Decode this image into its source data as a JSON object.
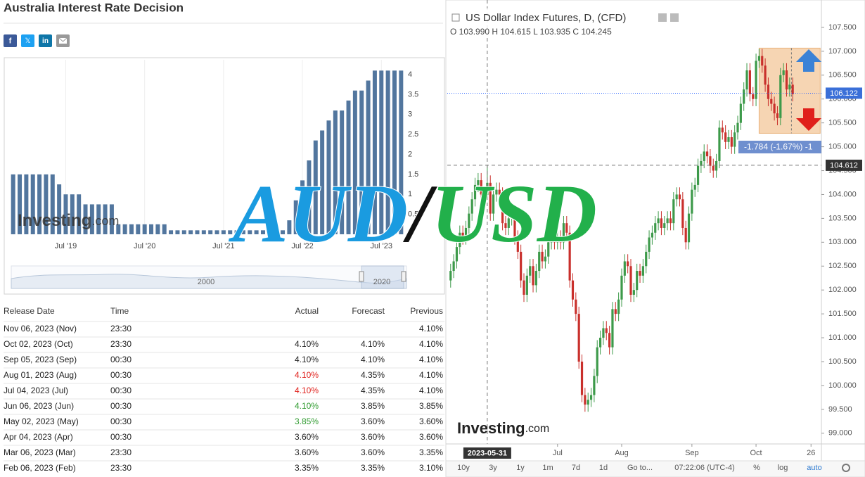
{
  "header": {
    "title": "Australia Interest Rate Decision",
    "social": [
      "f",
      "𝕏",
      "in"
    ]
  },
  "brand": {
    "name": "Investing",
    "suffix": ".com"
  },
  "table": {
    "columns": [
      "Release Date",
      "Time",
      "Actual",
      "Forecast",
      "Previous"
    ],
    "rows": [
      [
        "Nov 06, 2023 (Nov)",
        "23:30",
        null,
        null,
        "4.10%"
      ],
      [
        "Oct 02, 2023 (Oct)",
        "23:30",
        "4.10%",
        "4.10%",
        "4.10%"
      ],
      [
        "Sep 05, 2023 (Sep)",
        "00:30",
        "4.10%",
        "4.10%",
        "4.10%"
      ],
      [
        "Aug 01, 2023 (Aug)",
        "00:30",
        "4.10%",
        "4.35%",
        "4.10%"
      ],
      [
        "Jul 04, 2023 (Jul)",
        "00:30",
        "4.10%",
        "4.35%",
        "4.10%"
      ],
      [
        "Jun 06, 2023 (Jun)",
        "00:30",
        "4.10%",
        "3.85%",
        "3.85%"
      ],
      [
        "May 02, 2023 (May)",
        "00:30",
        "3.85%",
        "3.60%",
        "3.60%"
      ],
      [
        "Apr 04, 2023 (Apr)",
        "00:30",
        "3.60%",
        "3.60%",
        "3.60%"
      ],
      [
        "Mar 06, 2023 (Mar)",
        "23:30",
        "3.60%",
        "3.60%",
        "3.35%"
      ],
      [
        "Feb 06, 2023 (Feb)",
        "23:30",
        "3.35%",
        "3.35%",
        "3.10%"
      ]
    ],
    "actual_colors": [
      "#222222",
      "#222222",
      "#222222",
      "#e0201b",
      "#e0201b",
      "#2e9a2e",
      "#2e9a2e",
      "#222222",
      "#222222",
      "#222222"
    ]
  },
  "chart_data": [
    {
      "type": "bar",
      "color": "#52769e",
      "categories": [
        null,
        null,
        null,
        null,
        null,
        null,
        null,
        null,
        "Jul '19",
        null,
        null,
        null,
        null,
        null,
        null,
        null,
        null,
        null,
        null,
        null,
        "Jul '20",
        null,
        null,
        null,
        null,
        null,
        null,
        null,
        null,
        null,
        null,
        null,
        "Jul '21",
        null,
        null,
        null,
        null,
        null,
        null,
        null,
        null,
        null,
        null,
        null,
        "Jul '22",
        null,
        null,
        null,
        null,
        null,
        null,
        null,
        null,
        null,
        null,
        null,
        "Jul '23",
        null,
        null,
        null
      ],
      "values": [
        1.5,
        1.5,
        1.5,
        1.5,
        1.5,
        1.5,
        1.5,
        1.25,
        1.0,
        1.0,
        1.0,
        0.75,
        0.75,
        0.75,
        0.75,
        0.75,
        0.25,
        0.25,
        0.25,
        0.25,
        0.25,
        0.25,
        0.25,
        0.25,
        0.1,
        0.1,
        0.1,
        0.1,
        0.1,
        0.1,
        0.1,
        0.1,
        0.1,
        0.1,
        0.1,
        0.1,
        0.1,
        0.1,
        0.1,
        0.1,
        0.1,
        0.1,
        0.35,
        0.85,
        1.35,
        1.85,
        2.35,
        2.6,
        2.85,
        3.1,
        3.1,
        3.35,
        3.6,
        3.6,
        3.85,
        4.1,
        4.1,
        4.1,
        4.1,
        4.1
      ],
      "ylim": [
        0,
        4.37
      ],
      "yticks": [
        0,
        0.5,
        1,
        1.5,
        2,
        2.5,
        3,
        3.5,
        4
      ],
      "navigator_labels": [
        "2000",
        "2020"
      ]
    },
    {
      "type": "candlestick",
      "title": "US Dollar Index Futures, D, (CFD)",
      "ohlc_text": "O 103.990  H 104.615  L 103.935  C 104.245",
      "up_color": "#3d9a4a",
      "down_color": "#c9302c",
      "open": [
        102.2,
        102.4,
        102.6,
        102.9,
        103.2,
        103.1,
        103.3,
        103.6,
        103.9,
        104.2,
        104.3,
        104.0,
        103.99,
        104.245,
        103.6,
        104.0,
        104.1,
        104.0,
        103.4,
        103.3,
        103.5,
        103.6,
        103.1,
        102.8,
        102.2,
        101.9,
        102.3,
        102.5,
        102.1,
        102.4,
        102.8,
        102.6,
        102.7,
        103.0,
        103.3,
        103.0,
        103.1,
        103.0,
        103.4,
        103.2,
        102.2,
        101.8,
        101.5,
        100.5,
        99.8,
        99.6,
        99.7,
        99.8,
        100.2,
        100.8,
        101.0,
        101.2,
        101.1,
        100.8,
        101.6,
        101.5,
        101.8,
        102.3,
        102.6,
        102.5,
        101.9,
        102.0,
        102.4,
        102.3,
        102.5,
        102.8,
        103.1,
        103.2,
        103.4,
        103.5,
        103.3,
        103.4,
        103.5,
        103.4,
        103.9,
        104.0,
        103.9,
        103.3,
        103.0,
        103.6,
        104.1,
        104.2,
        104.6,
        104.7,
        104.9,
        104.8,
        104.6,
        104.5,
        104.7,
        105.4,
        105.3,
        105.1,
        105.2,
        105.0,
        105.3,
        105.5,
        105.9,
        106.2,
        106.6,
        106.1,
        106.0,
        106.8,
        106.9,
        106.7,
        106.3,
        106.0,
        105.9,
        105.7,
        105.6,
        106.5,
        106.6,
        106.2,
        106.3
      ],
      "high": [
        102.55,
        102.75,
        103.05,
        103.35,
        103.35,
        103.45,
        103.75,
        104.05,
        104.35,
        104.45,
        104.45,
        104.15,
        104.615,
        104.4,
        104.15,
        104.25,
        104.25,
        104.15,
        103.55,
        103.65,
        103.75,
        103.75,
        103.25,
        102.95,
        102.35,
        102.45,
        102.65,
        102.65,
        102.55,
        102.95,
        102.95,
        102.85,
        103.15,
        103.45,
        103.45,
        103.25,
        103.25,
        103.55,
        103.55,
        103.35,
        102.35,
        101.95,
        101.65,
        100.65,
        99.95,
        99.85,
        99.95,
        100.35,
        100.95,
        101.15,
        101.35,
        101.35,
        101.25,
        101.75,
        101.75,
        101.95,
        102.45,
        102.75,
        102.75,
        102.65,
        102.15,
        102.55,
        102.55,
        102.65,
        102.95,
        103.25,
        103.35,
        103.55,
        103.65,
        103.65,
        103.55,
        103.65,
        103.65,
        104.05,
        104.15,
        104.15,
        104.05,
        103.45,
        103.75,
        104.25,
        104.35,
        104.75,
        104.85,
        105.05,
        105.05,
        104.95,
        104.75,
        104.85,
        105.55,
        105.55,
        105.45,
        105.35,
        105.35,
        105.45,
        105.65,
        106.05,
        106.35,
        106.75,
        106.75,
        106.25,
        106.95,
        107.05,
        107.05,
        106.85,
        106.45,
        106.15,
        106.05,
        105.85,
        106.65,
        106.75,
        106.75,
        106.45,
        106.45
      ],
      "low": [
        102.05,
        102.25,
        102.45,
        102.75,
        102.95,
        102.95,
        103.15,
        103.45,
        103.75,
        104.05,
        103.85,
        103.84,
        103.935,
        103.45,
        103.45,
        103.85,
        103.85,
        103.25,
        103.15,
        103.15,
        103.35,
        102.95,
        102.65,
        102.05,
        101.75,
        101.75,
        102.15,
        101.95,
        101.95,
        102.25,
        102.45,
        102.45,
        102.55,
        102.85,
        102.85,
        102.85,
        102.85,
        102.85,
        103.05,
        102.05,
        101.65,
        101.35,
        100.35,
        99.65,
        99.45,
        99.45,
        99.55,
        99.65,
        100.05,
        100.65,
        100.85,
        100.95,
        100.65,
        100.65,
        101.35,
        101.35,
        101.65,
        102.15,
        102.35,
        101.75,
        101.75,
        101.85,
        102.15,
        102.15,
        102.35,
        102.65,
        102.95,
        103.05,
        103.25,
        103.15,
        103.15,
        103.25,
        103.25,
        103.25,
        103.75,
        103.75,
        103.15,
        102.85,
        102.85,
        103.45,
        103.95,
        104.05,
        104.45,
        104.55,
        104.65,
        104.45,
        104.35,
        104.35,
        104.55,
        105.15,
        104.95,
        104.95,
        104.85,
        104.85,
        105.15,
        105.35,
        105.75,
        106.05,
        105.95,
        105.85,
        105.85,
        106.65,
        106.55,
        106.15,
        105.85,
        105.75,
        105.55,
        105.45,
        105.45,
        106.35,
        106.05,
        106.05,
        105.95
      ],
      "close": [
        102.4,
        102.6,
        102.9,
        103.2,
        103.1,
        103.3,
        103.6,
        103.9,
        104.2,
        104.3,
        104.0,
        103.99,
        104.245,
        103.6,
        104.0,
        104.1,
        104.0,
        103.4,
        103.3,
        103.5,
        103.6,
        103.1,
        102.8,
        102.2,
        101.9,
        102.3,
        102.5,
        102.1,
        102.4,
        102.8,
        102.6,
        102.7,
        103.0,
        103.3,
        103.0,
        103.1,
        103.0,
        103.4,
        103.2,
        102.2,
        101.8,
        101.5,
        100.5,
        99.8,
        99.6,
        99.7,
        99.8,
        100.2,
        100.8,
        101.0,
        101.2,
        101.1,
        100.8,
        101.6,
        101.5,
        101.8,
        102.3,
        102.6,
        102.5,
        101.9,
        102.0,
        102.4,
        102.3,
        102.5,
        102.8,
        103.1,
        103.2,
        103.4,
        103.5,
        103.3,
        103.4,
        103.5,
        103.4,
        103.9,
        104.0,
        103.9,
        103.3,
        103.0,
        103.6,
        104.1,
        104.2,
        104.6,
        104.7,
        104.9,
        104.8,
        104.6,
        104.5,
        104.7,
        105.4,
        105.3,
        105.1,
        105.2,
        105.0,
        105.3,
        105.5,
        105.9,
        106.2,
        106.6,
        106.1,
        106.0,
        106.8,
        106.9,
        106.7,
        106.3,
        106.0,
        105.9,
        105.7,
        105.6,
        106.5,
        106.6,
        106.2,
        106.3,
        106.1
      ],
      "xlim": [
        -1.1,
        121.4
      ],
      "xticks": [
        {
          "value": 35,
          "label": "Jul"
        },
        {
          "value": 56,
          "label": "Aug"
        },
        {
          "value": 79,
          "label": "Sep"
        },
        {
          "value": 100,
          "label": "Oct"
        },
        {
          "value": 118,
          "label": "26"
        }
      ],
      "ylim": [
        98.82,
        108.0
      ],
      "yticks": [
        {
          "value": 99,
          "label": "99.000"
        },
        {
          "value": 99.5,
          "label": "99.500"
        },
        {
          "value": 100,
          "label": "100.000"
        },
        {
          "value": 100.5,
          "label": "100.500"
        },
        {
          "value": 101,
          "label": "101.000"
        },
        {
          "value": 101.5,
          "label": "101.500"
        },
        {
          "value": 102,
          "label": "102.000"
        },
        {
          "value": 102.5,
          "label": "102.500"
        },
        {
          "value": 103,
          "label": "103.000"
        },
        {
          "value": 103.5,
          "label": "103.500"
        },
        {
          "value": 104,
          "label": "104.000"
        },
        {
          "value": 104.5,
          "label": "104.500"
        },
        {
          "value": 105,
          "label": "105.000"
        },
        {
          "value": 105.5,
          "label": "105.500"
        },
        {
          "value": 106,
          "label": "106.000"
        },
        {
          "value": 106.5,
          "label": "106.500"
        },
        {
          "value": 107,
          "label": "107.000"
        },
        {
          "value": 107.5,
          "label": "107.500"
        }
      ],
      "last_price": {
        "value": 106.122,
        "label": "106.122"
      },
      "crosshair": {
        "x": {
          "value": 12,
          "label": "2023-05-31"
        },
        "y": {
          "value": 104.612,
          "label": "104.612"
        }
      },
      "measure": {
        "label": "-1.784 (-1.67%)  -1",
        "high": 107.066,
        "low": 105.282,
        "start": 101,
        "end": 121
      },
      "toolbar": [
        "10y",
        "3y",
        "1y",
        "1m",
        "7d",
        "1d",
        "Go to...",
        "07:22:06 (UTC-4)",
        "%",
        "log",
        "auto"
      ]
    }
  ],
  "overlay": {
    "parts": [
      "AUD",
      "/",
      "USD"
    ],
    "colors": [
      "#1a9be0",
      "#111111",
      "#22b04b"
    ]
  }
}
